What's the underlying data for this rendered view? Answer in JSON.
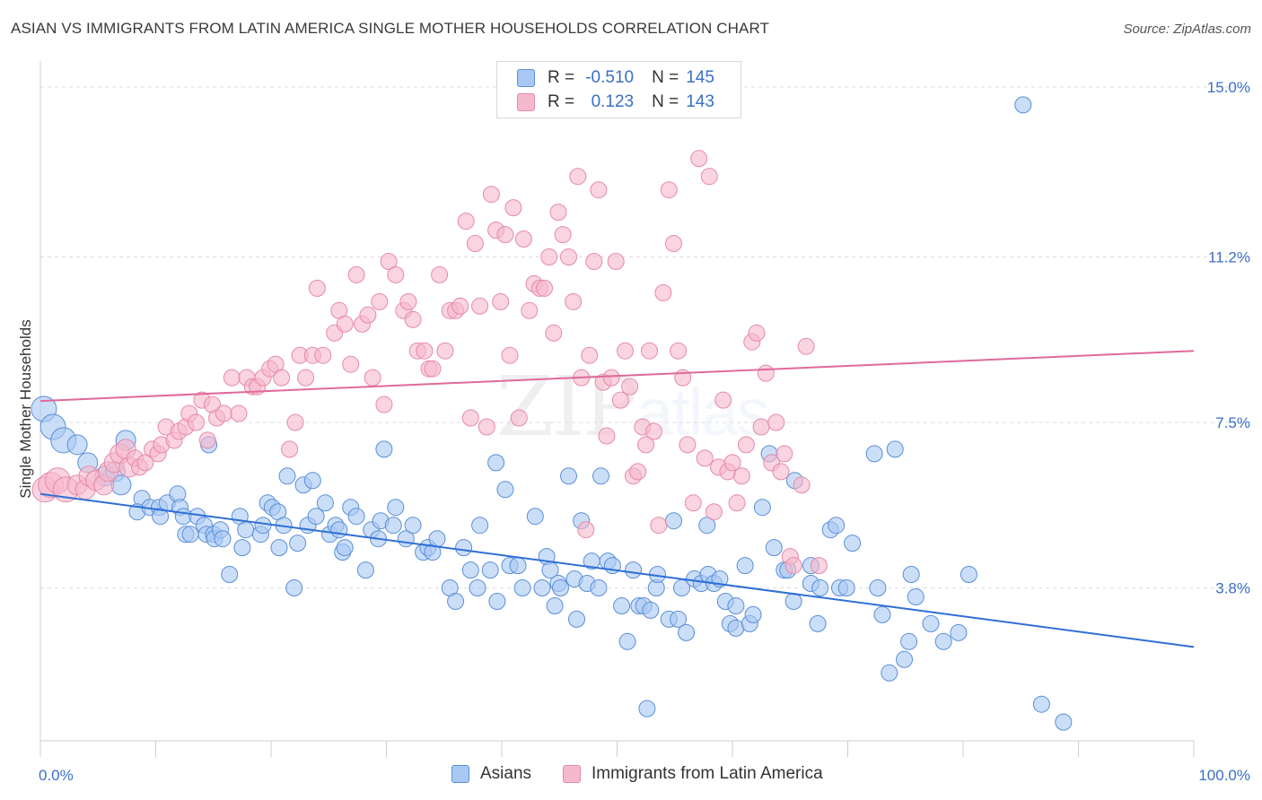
{
  "title": "ASIAN VS IMMIGRANTS FROM LATIN AMERICA SINGLE MOTHER HOUSEHOLDS CORRELATION CHART",
  "source": "Source: ZipAtlas.com",
  "watermark": {
    "zip": "ZIP",
    "atlas": "atlas"
  },
  "colors": {
    "blue_fill": "#a9c8f3",
    "blue_stroke": "#5a8fd8",
    "blue_line": "#2f6fd6",
    "pink_fill": "#f6b8cb",
    "pink_stroke": "#e58aa8",
    "pink_line": "#e0699a",
    "tick_label": "#3b6fc6",
    "grid": "#dcdcdc"
  },
  "legend_top": [
    {
      "r_label": "R =",
      "r_value": "-0.510",
      "n_label": "N =",
      "n_value": "145"
    },
    {
      "r_label": "R =",
      "r_value": "0.123",
      "n_label": "N =",
      "n_value": "143"
    }
  ],
  "legend_bottom": [
    {
      "label": "Asians"
    },
    {
      "label": "Immigrants from Latin America"
    }
  ],
  "chart_data": {
    "type": "scatter",
    "title": "ASIAN VS IMMIGRANTS FROM LATIN AMERICA SINGLE MOTHER HOUSEHOLDS CORRELATION CHART",
    "xlabel": "",
    "ylabel": "Single Mother Households",
    "xlim": [
      0,
      100
    ],
    "ylim": [
      0,
      15.0
    ],
    "x_tick_labels": [
      "0.0%",
      "100.0%"
    ],
    "y_ticks": [
      3.8,
      7.5,
      11.2,
      15.0
    ],
    "y_tick_labels": [
      "3.8%",
      "7.5%",
      "11.2%",
      "15.0%"
    ],
    "grid": true,
    "legend_placement": "top-center",
    "series": [
      {
        "name": "Asians",
        "r": -0.51,
        "n": 145,
        "trend": {
          "x": [
            0,
            100
          ],
          "y": [
            5.9,
            2.48
          ]
        },
        "points": [
          [
            0.3,
            7.8
          ],
          [
            1.1,
            7.4
          ],
          [
            2.0,
            7.1
          ],
          [
            3.2,
            7.0
          ],
          [
            4.1,
            6.6
          ],
          [
            5.6,
            6.3
          ],
          [
            6.5,
            6.4
          ],
          [
            7.4,
            7.1
          ],
          [
            7.0,
            6.1
          ],
          [
            8.8,
            5.8
          ],
          [
            8.4,
            5.5
          ],
          [
            9.5,
            5.6
          ],
          [
            10.3,
            5.6
          ],
          [
            10.4,
            5.4
          ],
          [
            11.0,
            5.7
          ],
          [
            11.9,
            5.9
          ],
          [
            12.1,
            5.6
          ],
          [
            12.6,
            5.0
          ],
          [
            12.4,
            5.4
          ],
          [
            13.0,
            5.0
          ],
          [
            13.6,
            5.4
          ],
          [
            14.2,
            5.2
          ],
          [
            14.4,
            5.0
          ],
          [
            14.6,
            7.0
          ],
          [
            15.0,
            5.0
          ],
          [
            15.1,
            4.9
          ],
          [
            15.6,
            5.1
          ],
          [
            15.8,
            4.9
          ],
          [
            16.4,
            4.1
          ],
          [
            17.3,
            5.4
          ],
          [
            17.5,
            4.7
          ],
          [
            17.8,
            5.1
          ],
          [
            19.1,
            5.0
          ],
          [
            19.3,
            5.2
          ],
          [
            19.7,
            5.7
          ],
          [
            20.1,
            5.6
          ],
          [
            20.6,
            5.5
          ],
          [
            20.7,
            4.7
          ],
          [
            21.1,
            5.2
          ],
          [
            21.4,
            6.3
          ],
          [
            22.0,
            3.8
          ],
          [
            22.3,
            4.8
          ],
          [
            22.8,
            6.1
          ],
          [
            23.2,
            5.2
          ],
          [
            23.9,
            5.4
          ],
          [
            23.6,
            6.2
          ],
          [
            24.7,
            5.7
          ],
          [
            25.1,
            5.0
          ],
          [
            25.6,
            5.2
          ],
          [
            25.9,
            5.1
          ],
          [
            26.2,
            4.6
          ],
          [
            26.4,
            4.7
          ],
          [
            26.9,
            5.6
          ],
          [
            27.4,
            5.4
          ],
          [
            28.2,
            4.2
          ],
          [
            28.7,
            5.1
          ],
          [
            29.3,
            4.9
          ],
          [
            29.5,
            5.3
          ],
          [
            29.8,
            6.9
          ],
          [
            30.6,
            5.2
          ],
          [
            30.8,
            5.6
          ],
          [
            31.7,
            4.9
          ],
          [
            32.3,
            5.2
          ],
          [
            33.2,
            4.6
          ],
          [
            33.6,
            4.7
          ],
          [
            34.0,
            4.6
          ],
          [
            34.4,
            4.9
          ],
          [
            35.5,
            3.8
          ],
          [
            36.0,
            3.5
          ],
          [
            36.7,
            4.7
          ],
          [
            37.3,
            4.2
          ],
          [
            37.9,
            3.8
          ],
          [
            38.1,
            5.2
          ],
          [
            39.0,
            4.2
          ],
          [
            39.6,
            3.5
          ],
          [
            39.5,
            6.6
          ],
          [
            40.3,
            6.0
          ],
          [
            40.7,
            4.3
          ],
          [
            41.4,
            4.3
          ],
          [
            41.8,
            3.8
          ],
          [
            42.9,
            5.4
          ],
          [
            43.5,
            3.8
          ],
          [
            43.9,
            4.5
          ],
          [
            44.2,
            4.2
          ],
          [
            44.6,
            3.4
          ],
          [
            44.9,
            3.9
          ],
          [
            45.1,
            3.8
          ],
          [
            45.8,
            6.3
          ],
          [
            46.3,
            4.0
          ],
          [
            46.5,
            3.1
          ],
          [
            46.9,
            5.3
          ],
          [
            47.4,
            3.9
          ],
          [
            47.8,
            4.4
          ],
          [
            48.4,
            3.8
          ],
          [
            48.6,
            6.3
          ],
          [
            49.2,
            4.4
          ],
          [
            49.6,
            4.3
          ],
          [
            50.4,
            3.4
          ],
          [
            50.9,
            2.6
          ],
          [
            51.4,
            4.2
          ],
          [
            51.9,
            3.4
          ],
          [
            52.3,
            3.4
          ],
          [
            52.9,
            3.3
          ],
          [
            53.4,
            3.8
          ],
          [
            53.5,
            4.1
          ],
          [
            54.5,
            3.1
          ],
          [
            54.9,
            5.3
          ],
          [
            55.3,
            3.1
          ],
          [
            55.6,
            3.8
          ],
          [
            56.0,
            2.8
          ],
          [
            56.7,
            4.0
          ],
          [
            57.3,
            3.9
          ],
          [
            57.8,
            5.2
          ],
          [
            57.9,
            4.1
          ],
          [
            58.4,
            3.9
          ],
          [
            58.9,
            4.0
          ],
          [
            59.4,
            3.5
          ],
          [
            59.8,
            3.0
          ],
          [
            60.3,
            3.4
          ],
          [
            60.3,
            2.9
          ],
          [
            61.1,
            4.3
          ],
          [
            61.5,
            3.0
          ],
          [
            61.8,
            3.2
          ],
          [
            62.6,
            5.6
          ],
          [
            63.2,
            6.8
          ],
          [
            63.6,
            4.7
          ],
          [
            64.5,
            4.2
          ],
          [
            64.8,
            4.2
          ],
          [
            65.3,
            3.5
          ],
          [
            65.4,
            6.2
          ],
          [
            66.8,
            3.9
          ],
          [
            66.8,
            4.3
          ],
          [
            67.4,
            3.0
          ],
          [
            67.6,
            3.8
          ],
          [
            68.5,
            5.1
          ],
          [
            69.0,
            5.2
          ],
          [
            69.3,
            3.8
          ],
          [
            69.9,
            3.8
          ],
          [
            70.4,
            4.8
          ],
          [
            72.6,
            3.8
          ],
          [
            73.0,
            3.2
          ],
          [
            73.6,
            1.9
          ],
          [
            74.1,
            6.9
          ],
          [
            74.9,
            2.2
          ],
          [
            75.3,
            2.6
          ],
          [
            75.5,
            4.1
          ],
          [
            75.9,
            3.6
          ],
          [
            77.2,
            3.0
          ],
          [
            78.3,
            2.6
          ],
          [
            79.6,
            2.8
          ],
          [
            80.5,
            4.1
          ],
          [
            85.2,
            14.6
          ],
          [
            86.8,
            1.2
          ],
          [
            88.7,
            0.8
          ],
          [
            72.3,
            6.8
          ],
          [
            52.6,
            1.1
          ]
        ]
      },
      {
        "name": "Immigrants from Latin America",
        "r": 0.123,
        "n": 143,
        "trend": {
          "x": [
            0,
            100
          ],
          "y": [
            7.98,
            9.1
          ]
        },
        "points": [
          [
            0.4,
            6.0
          ],
          [
            0.9,
            6.1
          ],
          [
            1.5,
            6.2
          ],
          [
            2.2,
            6.0
          ],
          [
            3.2,
            6.1
          ],
          [
            3.9,
            6.0
          ],
          [
            4.2,
            6.3
          ],
          [
            4.8,
            6.2
          ],
          [
            5.5,
            6.1
          ],
          [
            5.9,
            6.4
          ],
          [
            6.4,
            6.6
          ],
          [
            6.9,
            6.8
          ],
          [
            7.4,
            6.9
          ],
          [
            7.7,
            6.5
          ],
          [
            8.2,
            6.7
          ],
          [
            8.6,
            6.5
          ],
          [
            9.1,
            6.6
          ],
          [
            9.7,
            6.9
          ],
          [
            10.2,
            6.8
          ],
          [
            10.5,
            7.0
          ],
          [
            10.9,
            7.4
          ],
          [
            11.6,
            7.1
          ],
          [
            12.0,
            7.3
          ],
          [
            12.6,
            7.4
          ],
          [
            12.9,
            7.7
          ],
          [
            13.5,
            7.5
          ],
          [
            14.0,
            8.0
          ],
          [
            14.5,
            7.1
          ],
          [
            14.9,
            7.9
          ],
          [
            15.3,
            7.6
          ],
          [
            15.9,
            7.7
          ],
          [
            16.6,
            8.5
          ],
          [
            17.2,
            7.7
          ],
          [
            17.9,
            8.5
          ],
          [
            18.4,
            8.3
          ],
          [
            18.8,
            8.3
          ],
          [
            19.3,
            8.5
          ],
          [
            19.9,
            8.7
          ],
          [
            20.4,
            8.8
          ],
          [
            20.9,
            8.5
          ],
          [
            21.6,
            6.9
          ],
          [
            22.1,
            7.5
          ],
          [
            22.5,
            9.0
          ],
          [
            23.0,
            8.5
          ],
          [
            23.6,
            9.0
          ],
          [
            24.5,
            9.0
          ],
          [
            24.0,
            10.5
          ],
          [
            25.5,
            9.5
          ],
          [
            25.9,
            10.0
          ],
          [
            26.4,
            9.7
          ],
          [
            26.9,
            8.8
          ],
          [
            27.4,
            10.8
          ],
          [
            27.9,
            9.7
          ],
          [
            28.4,
            9.9
          ],
          [
            28.8,
            8.5
          ],
          [
            29.4,
            10.2
          ],
          [
            29.8,
            7.9
          ],
          [
            30.2,
            11.1
          ],
          [
            30.8,
            10.8
          ],
          [
            31.5,
            10.0
          ],
          [
            31.9,
            10.2
          ],
          [
            32.3,
            9.8
          ],
          [
            32.7,
            9.1
          ],
          [
            33.3,
            9.1
          ],
          [
            33.7,
            8.7
          ],
          [
            34.0,
            8.7
          ],
          [
            34.6,
            10.8
          ],
          [
            35.1,
            9.1
          ],
          [
            35.5,
            10.0
          ],
          [
            36.0,
            10.0
          ],
          [
            36.4,
            10.1
          ],
          [
            36.9,
            12.0
          ],
          [
            37.3,
            7.6
          ],
          [
            37.7,
            11.5
          ],
          [
            38.1,
            10.1
          ],
          [
            38.7,
            7.4
          ],
          [
            39.1,
            12.6
          ],
          [
            39.5,
            11.8
          ],
          [
            39.9,
            10.2
          ],
          [
            40.3,
            11.7
          ],
          [
            40.7,
            9.0
          ],
          [
            41.0,
            12.3
          ],
          [
            41.5,
            7.6
          ],
          [
            41.9,
            11.6
          ],
          [
            42.4,
            10.0
          ],
          [
            42.8,
            10.6
          ],
          [
            43.3,
            10.5
          ],
          [
            43.7,
            10.5
          ],
          [
            44.1,
            11.2
          ],
          [
            44.5,
            9.5
          ],
          [
            44.9,
            12.2
          ],
          [
            45.3,
            11.7
          ],
          [
            45.8,
            11.2
          ],
          [
            46.2,
            10.2
          ],
          [
            46.6,
            13.0
          ],
          [
            46.9,
            8.5
          ],
          [
            47.3,
            5.1
          ],
          [
            47.6,
            9.0
          ],
          [
            48.0,
            11.1
          ],
          [
            48.4,
            12.7
          ],
          [
            48.8,
            8.4
          ],
          [
            49.1,
            7.2
          ],
          [
            49.5,
            8.5
          ],
          [
            49.9,
            11.1
          ],
          [
            50.3,
            8.0
          ],
          [
            50.7,
            9.1
          ],
          [
            51.1,
            8.3
          ],
          [
            51.4,
            6.3
          ],
          [
            51.8,
            6.4
          ],
          [
            52.2,
            7.4
          ],
          [
            52.5,
            7.0
          ],
          [
            52.8,
            9.1
          ],
          [
            53.2,
            7.3
          ],
          [
            53.6,
            5.2
          ],
          [
            54.0,
            10.4
          ],
          [
            54.5,
            12.7
          ],
          [
            54.9,
            11.5
          ],
          [
            55.3,
            9.1
          ],
          [
            55.7,
            8.5
          ],
          [
            56.1,
            7.0
          ],
          [
            56.6,
            5.7
          ],
          [
            57.1,
            13.4
          ],
          [
            57.6,
            6.7
          ],
          [
            58.0,
            13.0
          ],
          [
            58.4,
            5.5
          ],
          [
            58.8,
            6.5
          ],
          [
            59.2,
            8.0
          ],
          [
            59.6,
            6.4
          ],
          [
            60.0,
            6.6
          ],
          [
            60.4,
            5.7
          ],
          [
            60.8,
            6.3
          ],
          [
            61.2,
            7.0
          ],
          [
            61.7,
            9.3
          ],
          [
            62.1,
            9.5
          ],
          [
            62.5,
            7.4
          ],
          [
            62.9,
            8.6
          ],
          [
            63.4,
            6.6
          ],
          [
            63.8,
            7.5
          ],
          [
            64.2,
            6.4
          ],
          [
            64.5,
            6.8
          ],
          [
            65.0,
            4.5
          ],
          [
            65.3,
            4.3
          ],
          [
            66.0,
            6.1
          ],
          [
            66.4,
            9.2
          ],
          [
            67.5,
            4.3
          ]
        ]
      }
    ]
  }
}
